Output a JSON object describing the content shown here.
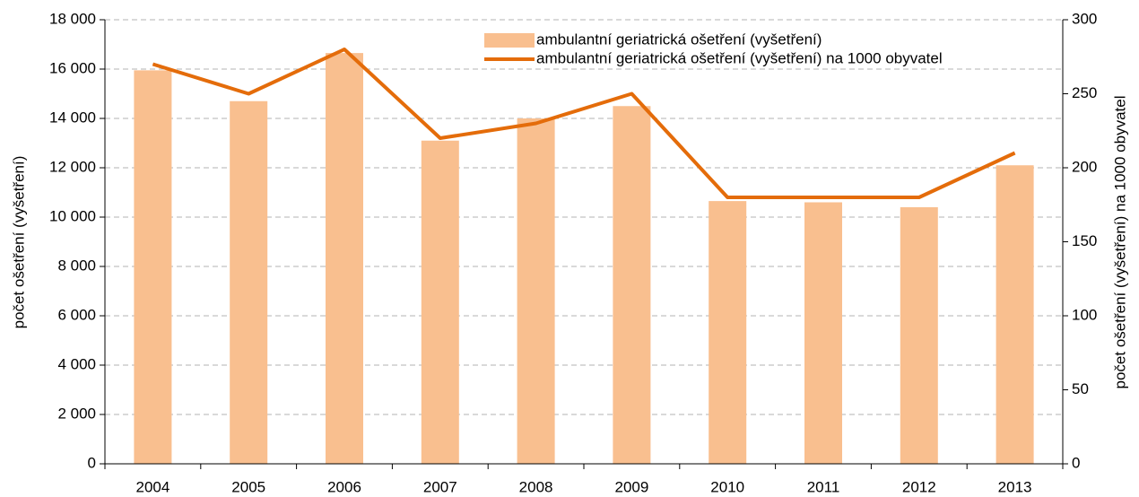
{
  "chart_data": {
    "type": "bar",
    "categories": [
      "2004",
      "2005",
      "2006",
      "2007",
      "2008",
      "2009",
      "2010",
      "2011",
      "2012",
      "2013"
    ],
    "series": [
      {
        "name": "ambulantní geriatrická ošetření (vyšetření)",
        "type": "bar",
        "color": "#f9bf8f",
        "values": [
          15950,
          14700,
          16650,
          13100,
          14000,
          14500,
          10650,
          10600,
          10400,
          12100
        ]
      },
      {
        "name": "ambulantní geriatrická ošetření (vyšetření) na 1000 obyvatel",
        "type": "line",
        "axis": "y2",
        "color": "#e46c0a",
        "values": [
          270,
          250,
          280,
          220,
          230,
          250,
          180,
          180,
          180,
          210
        ]
      }
    ],
    "ylabel": "počet ošetření (vyšetření)",
    "y2label": "počet ošetření (vyšetření) na 1000 obyvatel",
    "ylim": [
      0,
      18000
    ],
    "yticks": [
      0,
      {
        "value": 2000,
        "label": "2 000"
      },
      {
        "value": 4000,
        "label": "4 000"
      },
      {
        "value": 6000,
        "label": "6 000"
      },
      {
        "value": 8000,
        "label": "8 000"
      },
      {
        "value": 10000,
        "label": "10 000"
      },
      {
        "value": 12000,
        "label": "12 000"
      },
      {
        "value": 14000,
        "label": "14 000"
      },
      {
        "value": 16000,
        "label": "16 000"
      },
      {
        "value": 18000,
        "label": "18 000"
      }
    ],
    "y2lim": [
      0,
      300
    ],
    "y2ticks": [
      0,
      50,
      100,
      150,
      200,
      250,
      300
    ],
    "grid": true,
    "legend": "top"
  }
}
